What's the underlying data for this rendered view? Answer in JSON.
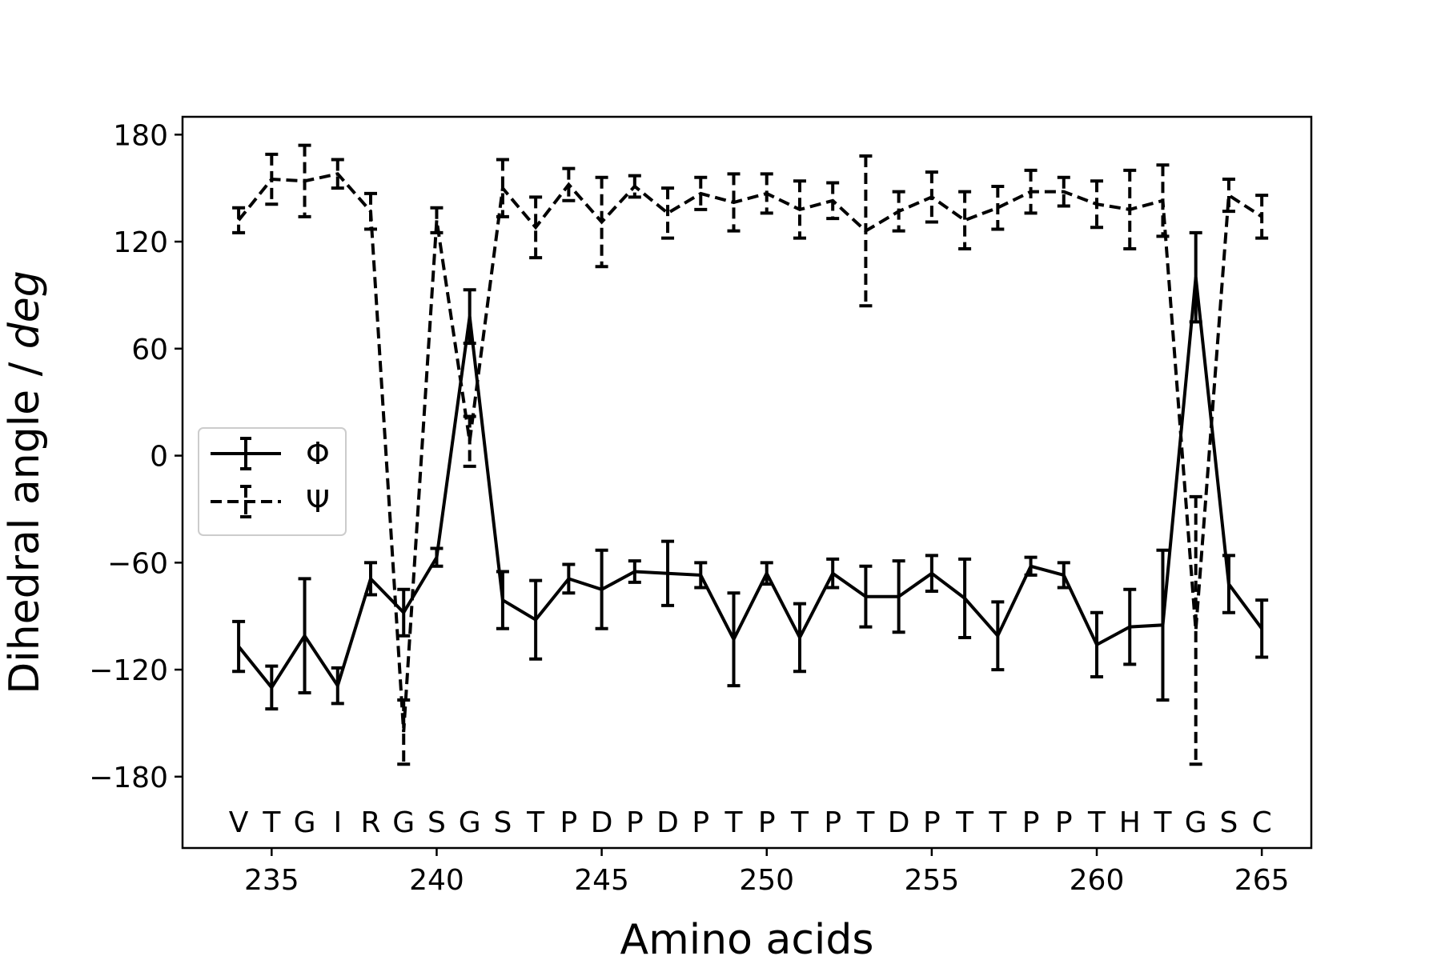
{
  "chart_data": {
    "type": "line",
    "xlabel": "Amino acids",
    "ylabel_prefix": "Dihedral angle / ",
    "ylabel_unit": "deg",
    "xlim": [
      232.3,
      266.5
    ],
    "ylim": [
      -220,
      190
    ],
    "xticks": [
      235,
      240,
      245,
      250,
      255,
      260,
      265
    ],
    "yticks": [
      -180,
      -120,
      -60,
      0,
      60,
      120,
      180
    ],
    "ytick_labels": [
      "−180",
      "−120",
      "−60",
      "0",
      "60",
      "120",
      "180"
    ],
    "grid": false,
    "legend_position": "center-left",
    "x": [
      234,
      235,
      236,
      237,
      238,
      239,
      240,
      241,
      242,
      243,
      244,
      245,
      246,
      247,
      248,
      249,
      250,
      251,
      252,
      253,
      254,
      255,
      256,
      257,
      258,
      259,
      260,
      261,
      262,
      263,
      264,
      265
    ],
    "residues": [
      "V",
      "T",
      "G",
      "I",
      "R",
      "G",
      "S",
      "G",
      "S",
      "T",
      "P",
      "D",
      "P",
      "D",
      "P",
      "T",
      "P",
      "T",
      "P",
      "T",
      "D",
      "P",
      "T",
      "T",
      "P",
      "P",
      "T",
      "H",
      "T",
      "G",
      "S",
      "C"
    ],
    "series": [
      {
        "name": "Φ",
        "style": "solid",
        "values": [
          -107,
          -130,
          -101,
          -129,
          -69,
          -88,
          -57,
          78,
          -81,
          -92,
          -69,
          -75,
          -65,
          -66,
          -67,
          -103,
          -66,
          -102,
          -66,
          -79,
          -79,
          -66,
          -80,
          -101,
          -62,
          -67,
          -106,
          -96,
          -95,
          100,
          -72,
          -97
        ],
        "errors": [
          14,
          12,
          32,
          10,
          9,
          13,
          5,
          15,
          16,
          22,
          8,
          22,
          6,
          18,
          7,
          26,
          6,
          19,
          8,
          17,
          20,
          10,
          22,
          19,
          5,
          7,
          18,
          21,
          42,
          25,
          16,
          16
        ]
      },
      {
        "name": "Ψ",
        "style": "dashed",
        "values": [
          132,
          155,
          154,
          158,
          137,
          -155,
          132,
          8,
          150,
          128,
          152,
          131,
          151,
          136,
          147,
          142,
          147,
          138,
          143,
          126,
          137,
          145,
          132,
          139,
          148,
          148,
          141,
          138,
          143,
          -98,
          146,
          134
        ],
        "errors": [
          7,
          14,
          20,
          8,
          10,
          18,
          7,
          14,
          16,
          17,
          9,
          25,
          6,
          14,
          9,
          16,
          11,
          16,
          10,
          42,
          11,
          14,
          16,
          12,
          12,
          8,
          13,
          22,
          20,
          75,
          9,
          12
        ]
      }
    ]
  }
}
